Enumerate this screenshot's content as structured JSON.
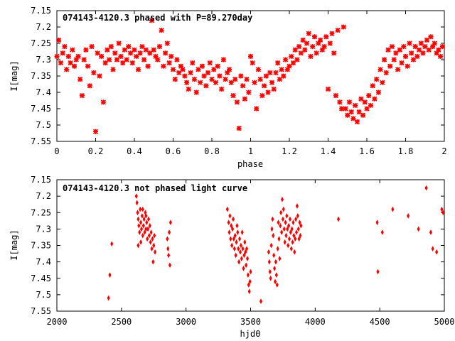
{
  "chart_data": [
    {
      "type": "scatter",
      "title": "074143-4120.3 phased with P=89.270day",
      "xlabel": "phase",
      "ylabel": "I[mag]",
      "xlim": [
        0,
        2
      ],
      "ylim": [
        7.55,
        7.15
      ],
      "y_inverted": true,
      "xticks": [
        "0",
        "0.2",
        "0.4",
        "0.6",
        "0.8",
        "1",
        "1.2",
        "1.4",
        "1.6",
        "1.8",
        "2"
      ],
      "yticks": [
        "7.15",
        "7.2",
        "7.25",
        "7.3",
        "7.35",
        "7.4",
        "7.45",
        "7.5",
        "7.55"
      ],
      "grid": false,
      "marker_color": "#ff0000",
      "points": [
        [
          0.0,
          7.29
        ],
        [
          0.01,
          7.24
        ],
        [
          0.02,
          7.31
        ],
        [
          0.03,
          7.28
        ],
        [
          0.04,
          7.26
        ],
        [
          0.05,
          7.33
        ],
        [
          0.06,
          7.29
        ],
        [
          0.07,
          7.31
        ],
        [
          0.08,
          7.27
        ],
        [
          0.09,
          7.32
        ],
        [
          0.1,
          7.3
        ],
        [
          0.11,
          7.29
        ],
        [
          0.12,
          7.36
        ],
        [
          0.13,
          7.41
        ],
        [
          0.14,
          7.3
        ],
        [
          0.15,
          7.27
        ],
        [
          0.16,
          7.32
        ],
        [
          0.17,
          7.38
        ],
        [
          0.18,
          7.26
        ],
        [
          0.19,
          7.34
        ],
        [
          0.2,
          7.52
        ],
        [
          0.21,
          7.28
        ],
        [
          0.22,
          7.35
        ],
        [
          0.23,
          7.29
        ],
        [
          0.24,
          7.43
        ],
        [
          0.25,
          7.31
        ],
        [
          0.26,
          7.27
        ],
        [
          0.27,
          7.3
        ],
        [
          0.28,
          7.26
        ],
        [
          0.29,
          7.33
        ],
        [
          0.3,
          7.28
        ],
        [
          0.31,
          7.3
        ],
        [
          0.32,
          7.25
        ],
        [
          0.33,
          7.29
        ],
        [
          0.34,
          7.31
        ],
        [
          0.35,
          7.27
        ],
        [
          0.36,
          7.3
        ],
        [
          0.37,
          7.26
        ],
        [
          0.38,
          7.28
        ],
        [
          0.39,
          7.31
        ],
        [
          0.4,
          7.27
        ],
        [
          0.41,
          7.29
        ],
        [
          0.42,
          7.33
        ],
        [
          0.43,
          7.28
        ],
        [
          0.44,
          7.26
        ],
        [
          0.45,
          7.3
        ],
        [
          0.46,
          7.27
        ],
        [
          0.47,
          7.32
        ],
        [
          0.48,
          7.28
        ],
        [
          0.49,
          7.18
        ],
        [
          0.5,
          7.27
        ],
        [
          0.51,
          7.29
        ],
        [
          0.52,
          7.3
        ],
        [
          0.53,
          7.26
        ],
        [
          0.54,
          7.21
        ],
        [
          0.55,
          7.32
        ],
        [
          0.56,
          7.28
        ],
        [
          0.57,
          7.25
        ],
        [
          0.58,
          7.31
        ],
        [
          0.59,
          7.29
        ],
        [
          0.6,
          7.33
        ],
        [
          0.61,
          7.36
        ],
        [
          0.62,
          7.3
        ],
        [
          0.63,
          7.34
        ],
        [
          0.64,
          7.32
        ],
        [
          0.65,
          7.33
        ],
        [
          0.66,
          7.35
        ],
        [
          0.67,
          7.37
        ],
        [
          0.68,
          7.39
        ],
        [
          0.69,
          7.34
        ],
        [
          0.7,
          7.31
        ],
        [
          0.71,
          7.36
        ],
        [
          0.72,
          7.4
        ],
        [
          0.73,
          7.33
        ],
        [
          0.74,
          7.37
        ],
        [
          0.75,
          7.32
        ],
        [
          0.76,
          7.35
        ],
        [
          0.77,
          7.38
        ],
        [
          0.78,
          7.34
        ],
        [
          0.79,
          7.31
        ],
        [
          0.8,
          7.36
        ],
        [
          0.81,
          7.33
        ],
        [
          0.82,
          7.37
        ],
        [
          0.83,
          7.32
        ],
        [
          0.84,
          7.35
        ],
        [
          0.85,
          7.39
        ],
        [
          0.86,
          7.3
        ],
        [
          0.87,
          7.36
        ],
        [
          0.88,
          7.34
        ],
        [
          0.89,
          7.33
        ],
        [
          0.9,
          7.37
        ],
        [
          0.91,
          7.41
        ],
        [
          0.92,
          7.36
        ],
        [
          0.93,
          7.43
        ],
        [
          0.94,
          7.51
        ],
        [
          0.95,
          7.35
        ],
        [
          0.96,
          7.38
        ],
        [
          0.97,
          7.42
        ],
        [
          0.98,
          7.36
        ],
        [
          0.99,
          7.4
        ],
        [
          1.0,
          7.29
        ],
        [
          1.01,
          7.31
        ],
        [
          1.02,
          7.37
        ],
        [
          1.03,
          7.45
        ],
        [
          1.04,
          7.33
        ],
        [
          1.05,
          7.36
        ],
        [
          1.06,
          7.41
        ],
        [
          1.07,
          7.38
        ],
        [
          1.08,
          7.35
        ],
        [
          1.09,
          7.4
        ],
        [
          1.1,
          7.34
        ],
        [
          1.11,
          7.37
        ],
        [
          1.12,
          7.39
        ],
        [
          1.13,
          7.34
        ],
        [
          1.14,
          7.31
        ],
        [
          1.15,
          7.36
        ],
        [
          1.16,
          7.33
        ],
        [
          1.17,
          7.35
        ],
        [
          1.18,
          7.3
        ],
        [
          1.19,
          7.33
        ],
        [
          1.2,
          7.32
        ],
        [
          1.21,
          7.29
        ],
        [
          1.22,
          7.31
        ],
        [
          1.23,
          7.27
        ],
        [
          1.24,
          7.3
        ],
        [
          1.25,
          7.26
        ],
        [
          1.26,
          7.28
        ],
        [
          1.27,
          7.24
        ],
        [
          1.28,
          7.27
        ],
        [
          1.29,
          7.25
        ],
        [
          1.3,
          7.22
        ],
        [
          1.31,
          7.29
        ],
        [
          1.32,
          7.26
        ],
        [
          1.33,
          7.23
        ],
        [
          1.34,
          7.28
        ],
        [
          1.35,
          7.25
        ],
        [
          1.36,
          7.24
        ],
        [
          1.37,
          7.27
        ],
        [
          1.38,
          7.26
        ],
        [
          1.39,
          7.23
        ],
        [
          1.4,
          7.39
        ],
        [
          1.41,
          7.25
        ],
        [
          1.42,
          7.22
        ],
        [
          1.43,
          7.28
        ],
        [
          1.44,
          7.41
        ],
        [
          1.45,
          7.21
        ],
        [
          1.46,
          7.43
        ],
        [
          1.47,
          7.45
        ],
        [
          1.48,
          7.2
        ],
        [
          1.49,
          7.45
        ],
        [
          1.5,
          7.47
        ],
        [
          1.51,
          7.43
        ],
        [
          1.52,
          7.46
        ],
        [
          1.53,
          7.48
        ],
        [
          1.54,
          7.44
        ],
        [
          1.55,
          7.49
        ],
        [
          1.56,
          7.46
        ],
        [
          1.57,
          7.42
        ],
        [
          1.58,
          7.47
        ],
        [
          1.59,
          7.43
        ],
        [
          1.6,
          7.45
        ],
        [
          1.61,
          7.41
        ],
        [
          1.62,
          7.44
        ],
        [
          1.63,
          7.38
        ],
        [
          1.64,
          7.42
        ],
        [
          1.65,
          7.36
        ],
        [
          1.66,
          7.4
        ],
        [
          1.67,
          7.33
        ],
        [
          1.68,
          7.37
        ],
        [
          1.69,
          7.3
        ],
        [
          1.7,
          7.34
        ],
        [
          1.71,
          7.27
        ],
        [
          1.72,
          7.32
        ],
        [
          1.73,
          7.26
        ],
        [
          1.74,
          7.3
        ],
        [
          1.75,
          7.28
        ],
        [
          1.76,
          7.33
        ],
        [
          1.77,
          7.27
        ],
        [
          1.78,
          7.31
        ],
        [
          1.79,
          7.26
        ],
        [
          1.8,
          7.29
        ],
        [
          1.81,
          7.32
        ],
        [
          1.82,
          7.25
        ],
        [
          1.83,
          7.28
        ],
        [
          1.84,
          7.3
        ],
        [
          1.85,
          7.26
        ],
        [
          1.86,
          7.29
        ],
        [
          1.87,
          7.27
        ],
        [
          1.88,
          7.25
        ],
        [
          1.89,
          7.28
        ],
        [
          1.9,
          7.26
        ],
        [
          1.91,
          7.24
        ],
        [
          1.92,
          7.27
        ],
        [
          1.93,
          7.23
        ],
        [
          1.94,
          7.26
        ],
        [
          1.95,
          7.25
        ],
        [
          1.96,
          7.28
        ],
        [
          1.97,
          7.27
        ],
        [
          1.98,
          7.29
        ],
        [
          1.99,
          7.26
        ]
      ]
    },
    {
      "type": "scatter",
      "title": "074143-4120.3 not phased light curve",
      "xlabel": "hjd0",
      "ylabel": "I[mag]",
      "xlim": [
        2000,
        5000
      ],
      "ylim": [
        7.55,
        7.15
      ],
      "y_inverted": true,
      "xticks": [
        "2000",
        "2500",
        "3000",
        "3500",
        "4000",
        "4500",
        "5000"
      ],
      "yticks": [
        "7.15",
        "7.2",
        "7.25",
        "7.3",
        "7.35",
        "7.4",
        "7.45",
        "7.5",
        "7.55"
      ],
      "grid": false,
      "marker_color": "#ff0000",
      "points": [
        [
          2400,
          7.51
        ],
        [
          2410,
          7.44
        ],
        [
          2425,
          7.345
        ],
        [
          2615,
          7.2
        ],
        [
          2620,
          7.22
        ],
        [
          2625,
          7.25
        ],
        [
          2630,
          7.27
        ],
        [
          2635,
          7.29
        ],
        [
          2640,
          7.31
        ],
        [
          2645,
          7.24
        ],
        [
          2650,
          7.28
        ],
        [
          2655,
          7.3
        ],
        [
          2660,
          7.26
        ],
        [
          2665,
          7.32
        ],
        [
          2670,
          7.29
        ],
        [
          2675,
          7.27
        ],
        [
          2680,
          7.31
        ],
        [
          2685,
          7.25
        ],
        [
          2690,
          7.3
        ],
        [
          2695,
          7.28
        ],
        [
          2700,
          7.33
        ],
        [
          2705,
          7.3
        ],
        [
          2710,
          7.27
        ],
        [
          2715,
          7.32
        ],
        [
          2720,
          7.29
        ],
        [
          2725,
          7.34
        ],
        [
          2730,
          7.31
        ],
        [
          2735,
          7.36
        ],
        [
          2740,
          7.33
        ],
        [
          2745,
          7.4
        ],
        [
          2750,
          7.35
        ],
        [
          2755,
          7.32
        ],
        [
          2760,
          7.37
        ],
        [
          2630,
          7.35
        ],
        [
          2650,
          7.34
        ],
        [
          2665,
          7.24
        ],
        [
          2690,
          7.26
        ],
        [
          2855,
          7.33
        ],
        [
          2860,
          7.36
        ],
        [
          2865,
          7.38
        ],
        [
          2870,
          7.31
        ],
        [
          2875,
          7.41
        ],
        [
          2880,
          7.28
        ],
        [
          3320,
          7.24
        ],
        [
          3330,
          7.28
        ],
        [
          3335,
          7.31
        ],
        [
          3340,
          7.26
        ],
        [
          3345,
          7.33
        ],
        [
          3350,
          7.29
        ],
        [
          3355,
          7.35
        ],
        [
          3360,
          7.3
        ],
        [
          3365,
          7.27
        ],
        [
          3370,
          7.33
        ],
        [
          3375,
          7.36
        ],
        [
          3380,
          7.32
        ],
        [
          3385,
          7.38
        ],
        [
          3390,
          7.34
        ],
        [
          3395,
          7.29
        ],
        [
          3400,
          7.31
        ],
        [
          3405,
          7.36
        ],
        [
          3410,
          7.4
        ],
        [
          3415,
          7.33
        ],
        [
          3420,
          7.37
        ],
        [
          3425,
          7.35
        ],
        [
          3430,
          7.39
        ],
        [
          3435,
          7.31
        ],
        [
          3440,
          7.36
        ],
        [
          3445,
          7.42
        ],
        [
          3450,
          7.38
        ],
        [
          3455,
          7.34
        ],
        [
          3460,
          7.37
        ],
        [
          3465,
          7.41
        ],
        [
          3470,
          7.36
        ],
        [
          3475,
          7.39
        ],
        [
          3480,
          7.44
        ],
        [
          3485,
          7.47
        ],
        [
          3490,
          7.49
        ],
        [
          3495,
          7.46
        ],
        [
          3500,
          7.43
        ],
        [
          3580,
          7.52
        ],
        [
          3640,
          7.37
        ],
        [
          3645,
          7.4
        ],
        [
          3650,
          7.43
        ],
        [
          3655,
          7.45
        ],
        [
          3660,
          7.35
        ],
        [
          3665,
          7.3
        ],
        [
          3670,
          7.27
        ],
        [
          3675,
          7.32
        ],
        [
          3680,
          7.38
        ],
        [
          3685,
          7.42
        ],
        [
          3690,
          7.46
        ],
        [
          3695,
          7.4
        ],
        [
          3700,
          7.44
        ],
        [
          3705,
          7.47
        ],
        [
          3710,
          7.36
        ],
        [
          3715,
          7.28
        ],
        [
          3720,
          7.33
        ],
        [
          3725,
          7.39
        ],
        [
          3730,
          7.29
        ],
        [
          3735,
          7.25
        ],
        [
          3740,
          7.31
        ],
        [
          3745,
          7.21
        ],
        [
          3750,
          7.27
        ],
        [
          3755,
          7.24
        ],
        [
          3760,
          7.3
        ],
        [
          3765,
          7.34
        ],
        [
          3770,
          7.28
        ],
        [
          3775,
          7.32
        ],
        [
          3780,
          7.26
        ],
        [
          3785,
          7.3
        ],
        [
          3790,
          7.35
        ],
        [
          3795,
          7.29
        ],
        [
          3800,
          7.33
        ],
        [
          3805,
          7.27
        ],
        [
          3810,
          7.31
        ],
        [
          3815,
          7.36
        ],
        [
          3820,
          7.3
        ],
        [
          3825,
          7.34
        ],
        [
          3830,
          7.28
        ],
        [
          3835,
          7.32
        ],
        [
          3840,
          7.37
        ],
        [
          3845,
          7.33
        ],
        [
          3850,
          7.27
        ],
        [
          3855,
          7.31
        ],
        [
          3860,
          7.23
        ],
        [
          3865,
          7.26
        ],
        [
          3870,
          7.3
        ],
        [
          3875,
          7.33
        ],
        [
          3880,
          7.28
        ],
        [
          3885,
          7.32
        ],
        [
          3890,
          7.29
        ],
        [
          4180,
          7.27
        ],
        [
          4480,
          7.28
        ],
        [
          4485,
          7.43
        ],
        [
          4520,
          7.31
        ],
        [
          4600,
          7.24
        ],
        [
          4720,
          7.26
        ],
        [
          4800,
          7.3
        ],
        [
          4860,
          7.175
        ],
        [
          4895,
          7.31
        ],
        [
          4910,
          7.36
        ],
        [
          4940,
          7.37
        ],
        [
          4980,
          7.24
        ],
        [
          4990,
          7.25
        ]
      ]
    }
  ]
}
